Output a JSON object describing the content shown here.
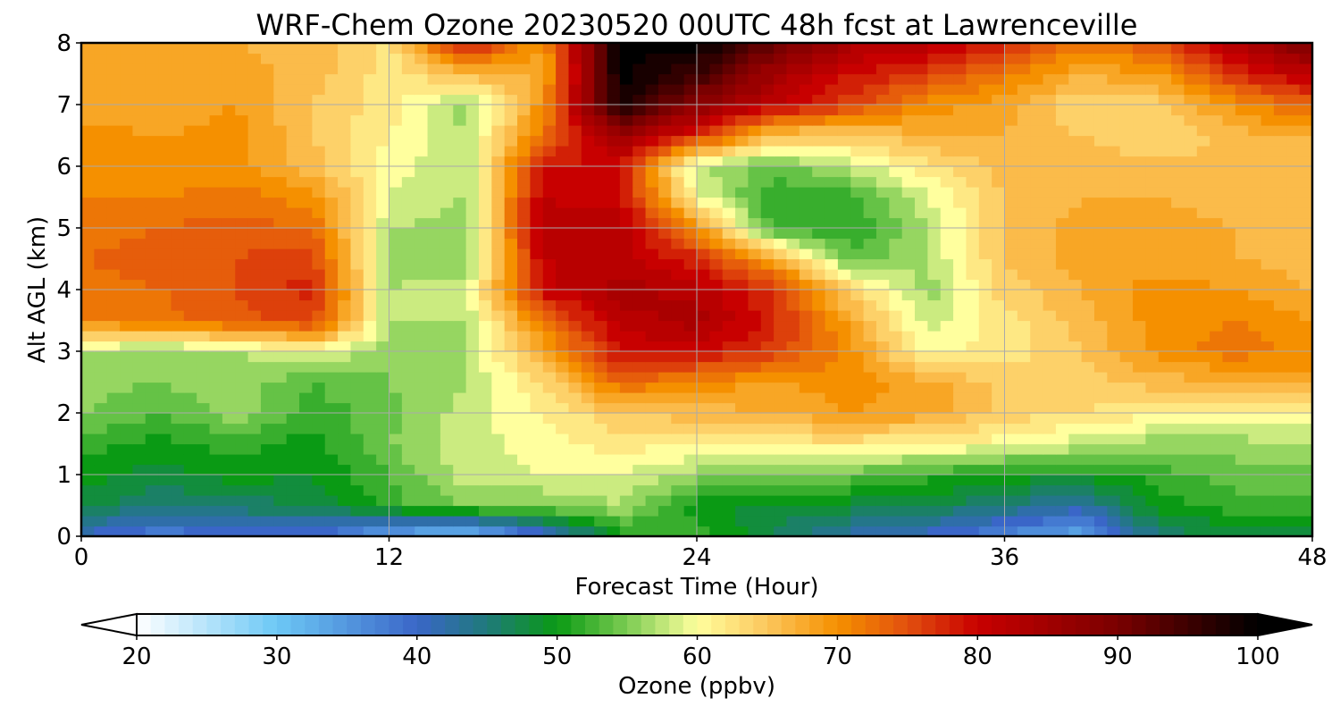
{
  "chart_data": {
    "type": "heatmap",
    "title": "WRF-Chem Ozone  20230520 00UTC 48h fcst at Lawrenceville",
    "xlabel": "Forecast Time (Hour)",
    "ylabel": "Alt AGL (km)",
    "xlim": [
      0,
      48
    ],
    "ylim": [
      0,
      8
    ],
    "xticks": [
      "0",
      "12",
      "24",
      "36",
      "48"
    ],
    "yticks": [
      "0",
      "1",
      "2",
      "3",
      "4",
      "5",
      "6",
      "7",
      "8"
    ],
    "grid": true,
    "x": [
      0,
      3,
      6,
      9,
      12,
      15,
      18,
      21,
      24,
      27,
      30,
      33,
      36,
      39,
      42,
      45,
      48
    ],
    "y": [
      0,
      0.5,
      1,
      1.5,
      2,
      2.5,
      3,
      3.5,
      4,
      4.5,
      5,
      5.5,
      6,
      6.5,
      7,
      7.5,
      8
    ],
    "z": [
      [
        40,
        37,
        39,
        39,
        32,
        30,
        38,
        50,
        52,
        47,
        42,
        40,
        36,
        33,
        45,
        48,
        48
      ],
      [
        48,
        45,
        46,
        47,
        52,
        55,
        55,
        57,
        50,
        48,
        48,
        47,
        45,
        42,
        50,
        52,
        52
      ],
      [
        50,
        48,
        50,
        49,
        53,
        58,
        59,
        59,
        56,
        55,
        54,
        52,
        50,
        50,
        52,
        54,
        54
      ],
      [
        52,
        50,
        52,
        50,
        55,
        58,
        60,
        62,
        61,
        62,
        62,
        61,
        60,
        58,
        56,
        56,
        57
      ],
      [
        55,
        53,
        56,
        52,
        54,
        58,
        61,
        65,
        66,
        67,
        69,
        68,
        64,
        63,
        61,
        61,
        61
      ],
      [
        56,
        55,
        56,
        53,
        55,
        57,
        63,
        73,
        70,
        69,
        70,
        68,
        64,
        64,
        66,
        67,
        68
      ],
      [
        57,
        56,
        57,
        60,
        55,
        57,
        68,
        79,
        80,
        76,
        70,
        60,
        62,
        65,
        70,
        72,
        70
      ],
      [
        71,
        72,
        74,
        76,
        57,
        57,
        72,
        82,
        84,
        78,
        68,
        58,
        62,
        66,
        70,
        71,
        69
      ],
      [
        72,
        73,
        75,
        78,
        57,
        58,
        80,
        84,
        82,
        77,
        64,
        56,
        64,
        67,
        70,
        69,
        67
      ],
      [
        73,
        74,
        75,
        76,
        56,
        56,
        81,
        82,
        78,
        68,
        54,
        57,
        65,
        68,
        68,
        67,
        66
      ],
      [
        72,
        73,
        74,
        73,
        57,
        56,
        82,
        82,
        70,
        52,
        51,
        57,
        65,
        68,
        68,
        67,
        66
      ],
      [
        71,
        71,
        72,
        70,
        59,
        57,
        81,
        80,
        60,
        51,
        52,
        59,
        65,
        67,
        67,
        66,
        65
      ],
      [
        70,
        69,
        70,
        66,
        60,
        57,
        79,
        79,
        57,
        54,
        58,
        62,
        66,
        66,
        66,
        65,
        65
      ],
      [
        70,
        69,
        70,
        65,
        61,
        57,
        72,
        86,
        77,
        65,
        64,
        67,
        67,
        65,
        63,
        66,
        67
      ],
      [
        68,
        67,
        69,
        65,
        62,
        56,
        70,
        98,
        88,
        81,
        76,
        70,
        68,
        63,
        64,
        70,
        74
      ],
      [
        69,
        68,
        68,
        66,
        62,
        66,
        67,
        100,
        95,
        85,
        79,
        76,
        72,
        67,
        69,
        77,
        82
      ],
      [
        68,
        68,
        67,
        66,
        62,
        80,
        69,
        100,
        100,
        92,
        84,
        82,
        78,
        72,
        75,
        83,
        90
      ]
    ],
    "colorbar": {
      "label": "Ozone  (ppbv)",
      "min": 20,
      "max": 100,
      "ticks": [
        "20",
        "30",
        "40",
        "50",
        "60",
        "70",
        "80",
        "90",
        "100"
      ],
      "extend": "both",
      "colors": [
        {
          "v": 20,
          "c": "#ffffff"
        },
        {
          "v": 30,
          "c": "#6cc8f5"
        },
        {
          "v": 40,
          "c": "#3a66c8"
        },
        {
          "v": 45,
          "c": "#1f7a7a"
        },
        {
          "v": 50,
          "c": "#0a9a14"
        },
        {
          "v": 55,
          "c": "#7ccc52"
        },
        {
          "v": 60,
          "c": "#ffff9e"
        },
        {
          "v": 65,
          "c": "#fcc65c"
        },
        {
          "v": 70,
          "c": "#f59000"
        },
        {
          "v": 75,
          "c": "#e2500e"
        },
        {
          "v": 80,
          "c": "#c80000"
        },
        {
          "v": 90,
          "c": "#7a0000"
        },
        {
          "v": 100,
          "c": "#000000"
        }
      ]
    }
  }
}
